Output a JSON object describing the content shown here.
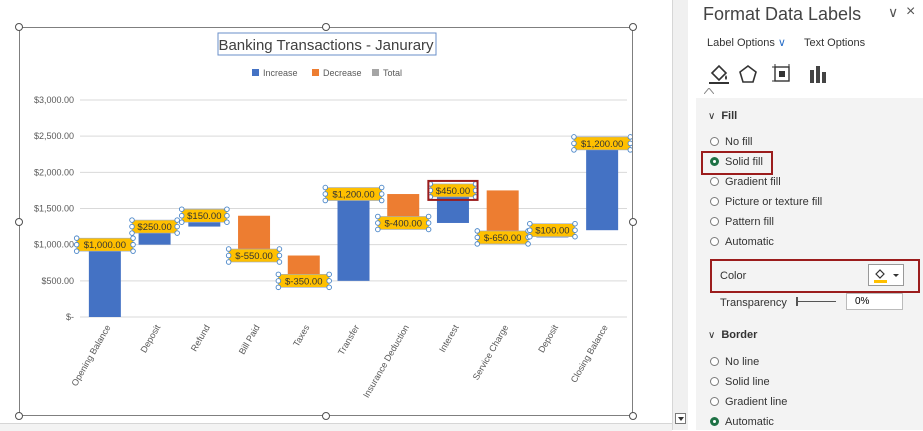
{
  "pane": {
    "title": "Format Data Labels",
    "tabs": [
      "Label Options",
      "Text Options"
    ],
    "icons": [
      "fill-line-icon",
      "effects-icon",
      "size-properties-icon",
      "label-options-icon"
    ],
    "fill_section": "Fill",
    "fill_options": [
      "No fill",
      "Solid fill",
      "Gradient fill",
      "Picture or texture fill",
      "Pattern fill",
      "Automatic"
    ],
    "fill_selected": "Solid fill",
    "color_label": "Color",
    "transparency_label": "Transparency",
    "transparency_value": "0%",
    "border_section": "Border",
    "border_options": [
      "No line",
      "Solid line",
      "Gradient line",
      "Automatic"
    ],
    "border_selected": "Automatic"
  },
  "colors": {
    "increase": "#4472C4",
    "decrease": "#ED7D31",
    "total": "#A5A5A5",
    "label_fill": "#FFC000",
    "highlight": "#9B1C1C",
    "selected_radio": "#1E7145"
  },
  "chart_data": {
    "type": "waterfall",
    "title": "Banking Transactions - Janurary",
    "legend": [
      "Increase",
      "Decrease",
      "Total"
    ],
    "legend_position": "top",
    "categories": [
      "Opening Balance",
      "Deposit",
      "Refund",
      "Bill Paid",
      "Taxes",
      "Transfer",
      "Insurance Deduction",
      "Interest",
      "Service Charge",
      "Deposit",
      "Closing Balance"
    ],
    "values": [
      1000,
      250,
      150,
      -550,
      -350,
      1200,
      -400,
      450,
      -650,
      100,
      1200
    ],
    "kinds": [
      "increase",
      "increase",
      "increase",
      "decrease",
      "decrease",
      "increase",
      "decrease",
      "increase",
      "decrease",
      "increase",
      "increase"
    ],
    "labels": [
      "$1,000.00",
      "$250.00",
      "$150.00",
      "$-550.00",
      "$-350.00",
      "$1,200.00",
      "$-400.00",
      "$450.00",
      "$-650.00",
      "$100.00",
      "$1,200.00"
    ],
    "highlighted_label": 7,
    "yticks": [
      "$-",
      "$500.00",
      "$1,000.00",
      "$1,500.00",
      "$2,000.00",
      "$2,500.00",
      "$3,000.00"
    ],
    "ylim": [
      0,
      3000
    ],
    "grid": true
  }
}
